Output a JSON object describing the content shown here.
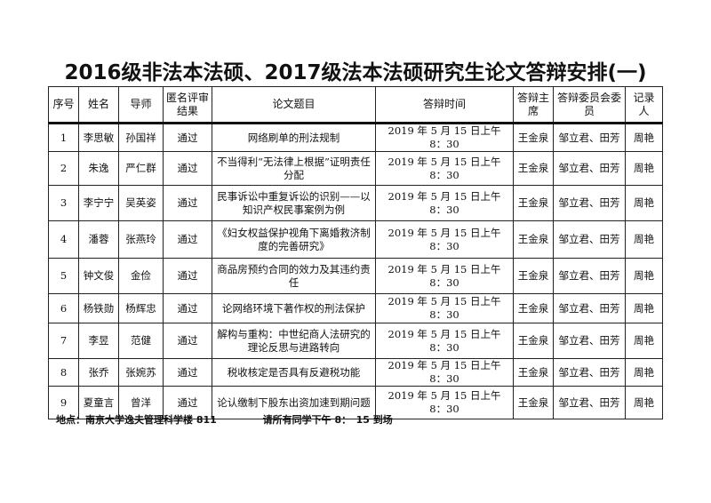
{
  "title": "2016级非法本法硕、2017级法本法硕研究生论文答辩安排(一)",
  "headers": [
    "序号",
    "姓名",
    "导师",
    "匿名评审结果",
    "论文题目",
    "答辩时间",
    "答辩主席",
    "答辩委员会委　员",
    "记录人"
  ],
  "rows": [
    [
      "1",
      "李思敏",
      "孙国祥",
      "通过",
      "网络刷单的刑法规制",
      "2019 年 5 月 15 日上午 8：30",
      "王金泉",
      "邹立君、田芳",
      "周艳"
    ],
    [
      "2",
      "朱逸",
      "严仁群",
      "通过",
      "不当得利“无法律上根据”证明责任分配",
      "2019 年 5 月 15 日上午 8：30",
      "王金泉",
      "邹立君、田芳",
      "周艳"
    ],
    [
      "3",
      "李宁宁",
      "吴英姿",
      "通过",
      "民事诉讼中重复诉讼的识别——以知识产权民事案例为例",
      "2019 年 5 月 15 日上午 8：30",
      "王金泉",
      "邹立君、田芳",
      "周艳"
    ],
    [
      "4",
      "潘蓉",
      "张燕玲",
      "通过",
      "《妇女权益保护视角下离婚救济制度的完善研究》",
      "2019 年 5 月 15 日上午 8：30",
      "王金泉",
      "邹立君、田芳",
      "周艳"
    ],
    [
      "5",
      "钟文俊",
      "金俭",
      "通过",
      "商品房预约合同的效力及其违约责任",
      "2019 年 5 月 15 日上午 8：30",
      "王金泉",
      "邹立君、田芳",
      "周艳"
    ],
    [
      "6",
      "杨铁勋",
      "杨辉忠",
      "通过",
      "论网络环境下著作权的刑法保护",
      "2019 年 5 月 15 日上午 8：30",
      "王金泉",
      "邹立君、田芳",
      "周艳"
    ],
    [
      "7",
      "李昱",
      "范健",
      "通过",
      "解构与重构：中世纪商人法研究的理论反思与进路转向",
      "2019 年 5 月 15 日上午 8：30",
      "王金泉",
      "邹立君、田芳",
      "周艳"
    ],
    [
      "8",
      "张乔",
      "张婉苏",
      "通过",
      "税收核定是否具有反避税功能",
      "2019 年 5 月 15 日上午 8：30",
      "王金泉",
      "邹立君、田芳",
      "周艳"
    ],
    [
      "9",
      "夏童言",
      "曾洋",
      "通过",
      "论认缴制下股东出资加速到期问题",
      "2019 年 5 月 15 日上午 8：30",
      "王金泉",
      "邹立君、田芳",
      "周艳"
    ]
  ],
  "footer": {
    "location": "地点：南京大学逸夫管理科学楼 811",
    "note": "请所有同学下午 8：　15 到场"
  }
}
